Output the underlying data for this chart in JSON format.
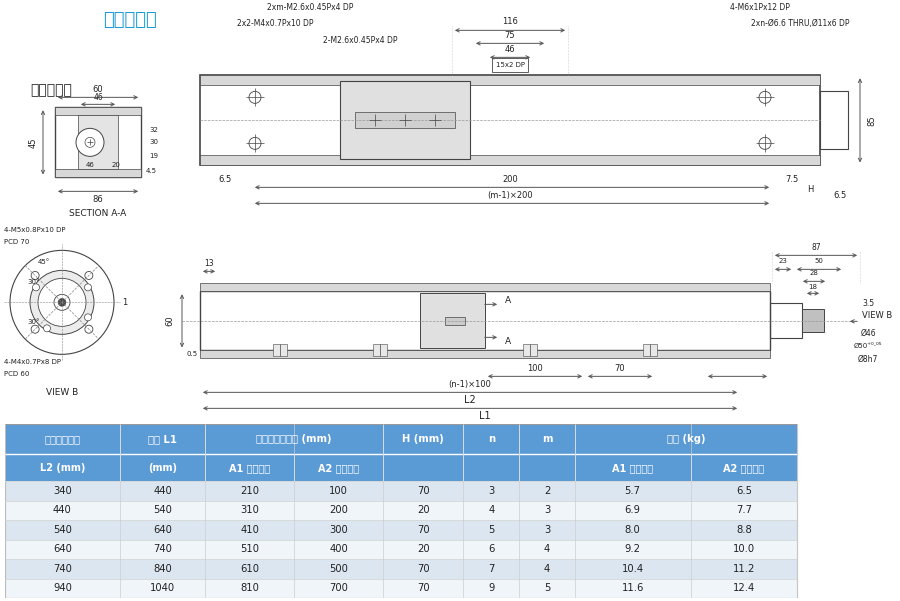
{
  "bg_color": "#ffffff",
  "cyan_color": "#1a9cd8",
  "dark_color": "#222222",
  "line_color": "#444444",
  "dim_color": "#555555",
  "gray_fill": "#d8d8d8",
  "light_fill": "#eeeeee",
  "header_blue": "#4a90c4",
  "header_blue2": "#5b9bd5",
  "row_alt1": "#dce6f1",
  "row_alt2": "#f0f5fa",
  "table_data": [
    [
      340,
      440,
      210,
      100,
      70,
      3,
      2,
      "5.7",
      "6.5"
    ],
    [
      440,
      540,
      310,
      200,
      20,
      4,
      3,
      "6.9",
      "7.7"
    ],
    [
      540,
      640,
      410,
      300,
      70,
      5,
      3,
      "8.0",
      "8.8"
    ],
    [
      640,
      740,
      510,
      400,
      20,
      6,
      4,
      "9.2",
      "10.0"
    ],
    [
      740,
      840,
      610,
      500,
      70,
      7,
      4,
      "10.4",
      "11.2"
    ],
    [
      940,
      1040,
      810,
      700,
      70,
      9,
      5,
      "11.6",
      "12.4"
    ]
  ]
}
